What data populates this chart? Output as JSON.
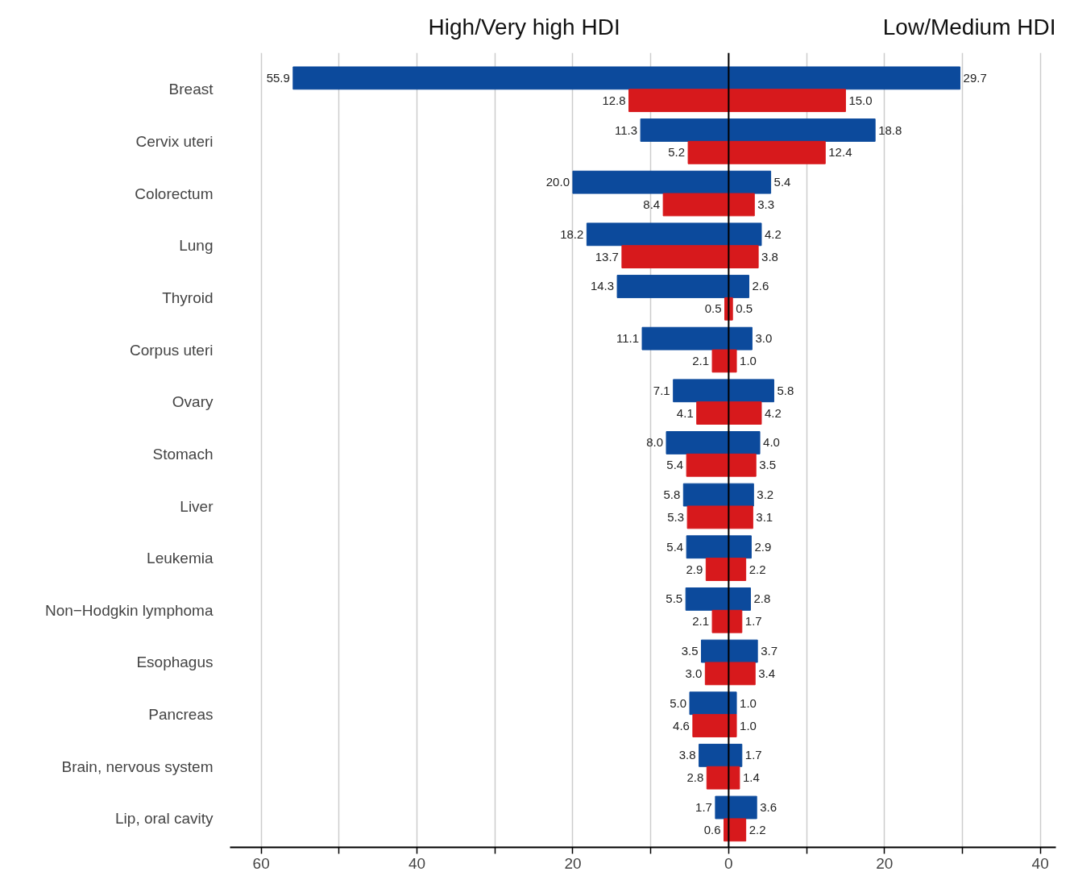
{
  "chart_data": {
    "type": "bar",
    "orientation": "horizontal",
    "categories": [
      "Breast",
      "Cervix uteri",
      "Colorectum",
      "Lung",
      "Thyroid",
      "Corpus uteri",
      "Ovary",
      "Stomach",
      "Liver",
      "Leukemia",
      "Non−Hodgkin lymphoma",
      "Esophagus",
      "Pancreas",
      "Brain, nervous system",
      "Lip, oral cavity"
    ],
    "series": [
      {
        "color": "#0c4a9c",
        "values": [
          55.9,
          11.3,
          20.0,
          18.2,
          14.3,
          11.1,
          7.1,
          8.0,
          5.8,
          5.4,
          5.5,
          3.5,
          5.0,
          3.8,
          1.7
        ],
        "base": [
          -55.9,
          -11.3,
          -20.0,
          -18.2,
          -14.3,
          -11.1,
          -7.1,
          -8.0,
          -5.8,
          -5.4,
          -5.5,
          -3.5,
          -5.0,
          -3.8,
          -1.7
        ],
        "value_labels": [
          "55.9",
          "11.3",
          "20.0",
          "18.2",
          "14.3",
          "11.1",
          "7.1",
          "8.0",
          "5.8",
          "5.4",
          "5.5",
          "3.5",
          "5.0",
          "3.8",
          "1.7"
        ]
      },
      {
        "color": "#d7191c",
        "values": [
          12.8,
          5.2,
          8.4,
          13.7,
          0.5,
          2.1,
          4.1,
          5.4,
          5.3,
          2.9,
          2.1,
          3.0,
          4.6,
          2.8,
          0.6
        ],
        "base": [
          -12.8,
          -5.2,
          -8.4,
          -13.7,
          -0.5,
          -2.1,
          -4.1,
          -5.4,
          -5.3,
          -2.9,
          -2.1,
          -3.0,
          -4.6,
          -2.8,
          -0.6
        ],
        "value_labels": [
          "12.8",
          "5.2",
          "8.4",
          "13.7",
          "0.5",
          "2.1",
          "4.1",
          "5.4",
          "5.3",
          "2.9",
          "2.1",
          "3.0",
          "4.6",
          "2.8",
          "0.6"
        ]
      },
      {
        "color": "#0c4a9c",
        "values": [
          29.7,
          18.8,
          5.4,
          4.2,
          2.6,
          3.0,
          5.8,
          4.0,
          3.2,
          2.9,
          2.8,
          3.7,
          1.0,
          1.7,
          3.6
        ],
        "value_labels": [
          "29.7",
          "18.8",
          "5.4",
          "4.2",
          "2.6",
          "3.0",
          "5.8",
          "4.0",
          "3.2",
          "2.9",
          "2.8",
          "3.7",
          "1.0",
          "1.7",
          "3.6"
        ]
      },
      {
        "color": "#d7191c",
        "values": [
          15.0,
          12.4,
          3.3,
          3.8,
          0.5,
          1.0,
          4.2,
          3.5,
          3.1,
          2.2,
          1.7,
          3.4,
          1.0,
          1.4,
          2.2
        ],
        "value_labels": [
          "15.0",
          "12.4",
          "3.3",
          "3.8",
          "0.5",
          "1.0",
          "4.2",
          "3.5",
          "3.1",
          "2.2",
          "1.7",
          "3.4",
          "1.0",
          "1.4",
          "2.2"
        ]
      }
    ],
    "xlim": [
      -64,
      42
    ],
    "xticks": [
      {
        "value": -60,
        "label": "60"
      },
      {
        "value": -50,
        "label": null
      },
      {
        "value": -40,
        "label": "40"
      },
      {
        "value": -30,
        "label": null
      },
      {
        "value": -20,
        "label": "20"
      },
      {
        "value": -10,
        "label": null
      },
      0,
      {
        "value": 10,
        "label": null
      },
      {
        "value": 20,
        "label": "20"
      },
      {
        "value": 30,
        "label": null
      },
      {
        "value": 40,
        "label": "40"
      }
    ],
    "grid": "x",
    "ref_lines": [
      {
        "axis": "x",
        "value": 0,
        "color": "#000000"
      }
    ],
    "annotations": [
      "High/Very high HDI",
      "Low/Medium HDI"
    ]
  }
}
